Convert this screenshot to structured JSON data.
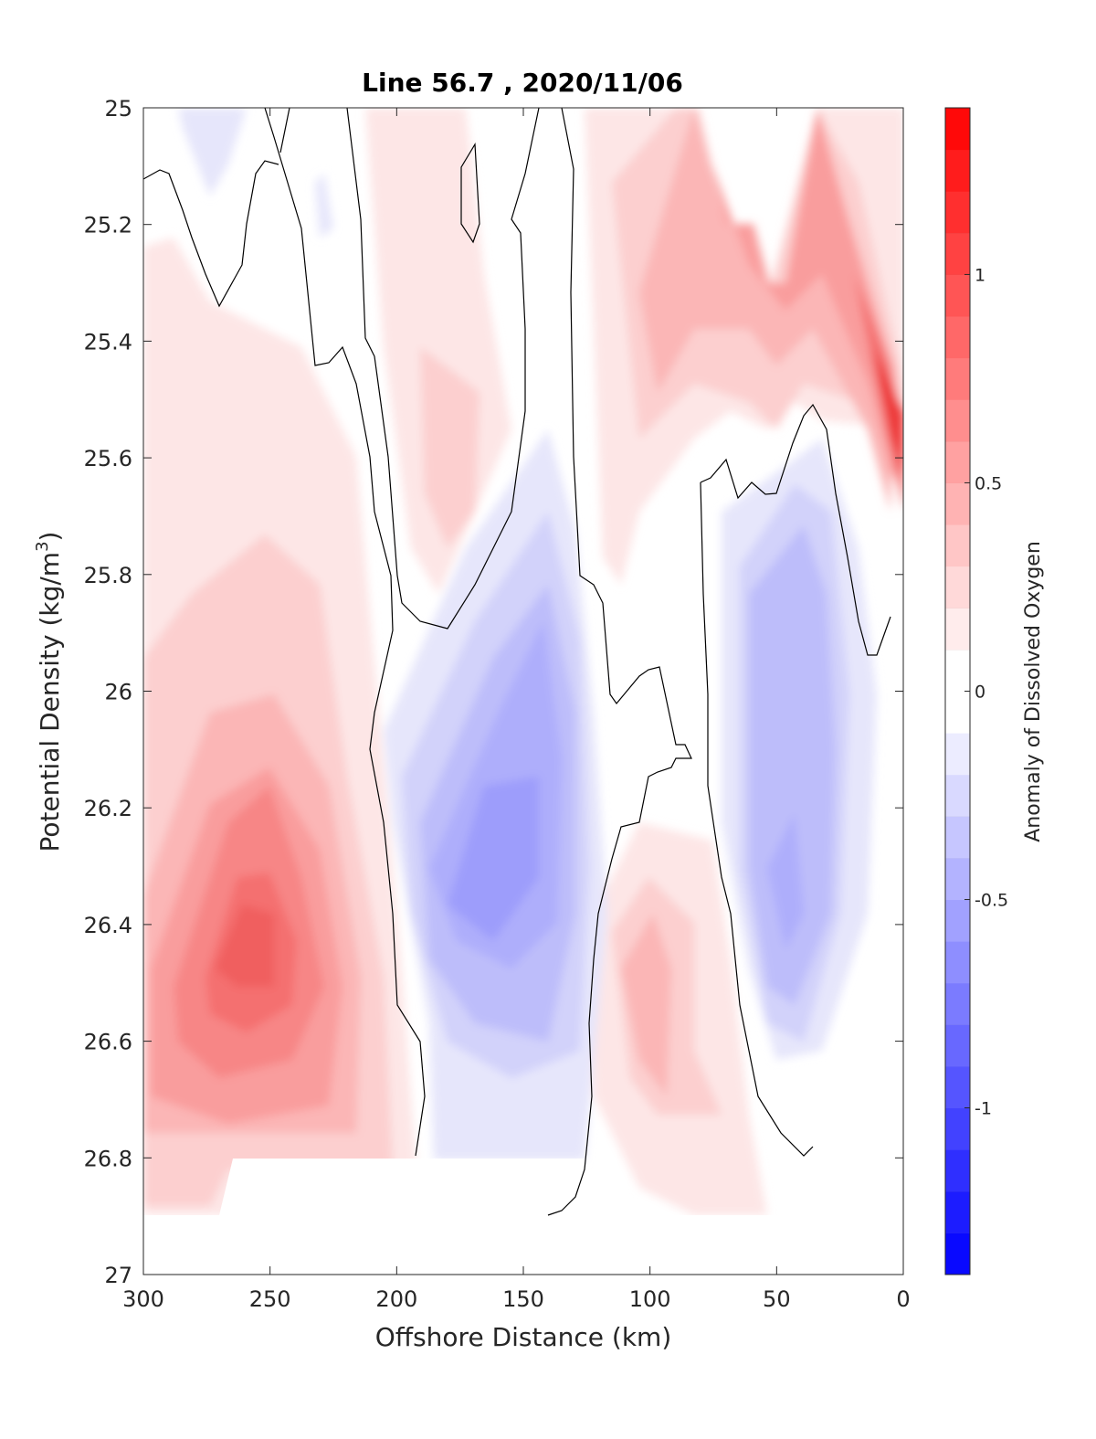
{
  "chart_data": {
    "type": "heatmap",
    "title": "Line 56.7 , 2020/11/06",
    "xlabel": "Offshore Distance (km)",
    "ylabel": "Potential Density (kg/m",
    "ylabel_sup": "3",
    "ylabel_end": ")",
    "xlim": [
      300,
      0
    ],
    "ylim": [
      25,
      27
    ],
    "x_reversed": true,
    "y_reversed": true,
    "xticks": [
      300,
      250,
      200,
      150,
      100,
      50,
      0
    ],
    "xtick_labels": [
      "300",
      "250",
      "200",
      "150",
      "100",
      "50",
      "0"
    ],
    "yticks": [
      25,
      25.2,
      25.4,
      25.6,
      25.8,
      26,
      26.2,
      26.4,
      26.6,
      26.8,
      27
    ],
    "ytick_labels": [
      "25",
      "25.2",
      "25.4",
      "25.6",
      "25.8",
      "26",
      "26.2",
      "26.4",
      "26.6",
      "26.8",
      "27"
    ],
    "colorbar": {
      "label": "Anomaly of Dissolved Oxygen",
      "lim": [
        -1.4,
        1.4
      ],
      "step": 0.1,
      "ticks": [
        1,
        0.5,
        0,
        -0.5,
        -1
      ],
      "tick_labels": [
        "1",
        "0.5",
        "0",
        "-0.5",
        "-1"
      ],
      "colormap": "blue-white-red",
      "neg_color": "#0000ff",
      "pos_color": "#ff0000",
      "mid_color": "#ffffff"
    },
    "features": [
      {
        "name": "positive anomaly core west",
        "x": 255,
        "y": 26.45,
        "value": 0.65
      },
      {
        "name": "negative anomaly core",
        "x": 160,
        "y": 26.3,
        "value": -0.45
      },
      {
        "name": "negative anomaly core east",
        "x": 50,
        "y": 26.35,
        "value": -0.35
      },
      {
        "name": "positive anomaly surface east",
        "x": 5,
        "y": 25.55,
        "value": 1.0
      },
      {
        "name": "positive anomaly mid",
        "x": 170,
        "y": 25.6,
        "value": 0.25
      },
      {
        "name": "positive anomaly deep",
        "x": 100,
        "y": 26.5,
        "value": 0.3
      }
    ]
  }
}
